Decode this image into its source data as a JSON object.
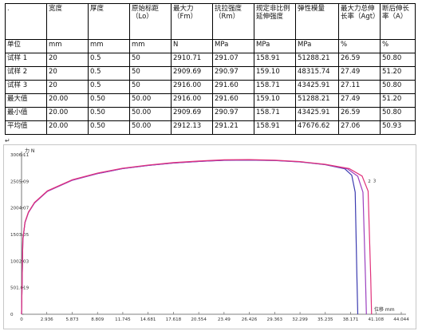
{
  "table": {
    "headers": [
      "宽度",
      "厚度",
      "原始标距（Lo）",
      "最大力（Fm）",
      "抗拉强度（Rm）",
      "规定非比例延伸强度",
      "弹性模量",
      "最大力总伸长率（Agt）",
      "断后伸长率（A）"
    ],
    "unit_row_label": "单位",
    "units": [
      "mm",
      "mm",
      "mm",
      "N",
      "MPa",
      "MPa",
      "MPa",
      "%",
      "%"
    ],
    "rows": [
      {
        "label": "试样 1",
        "values": [
          "20",
          "0.5",
          "50",
          "2910.71",
          "291.07",
          "158.91",
          "51288.21",
          "26.59",
          "50.80"
        ]
      },
      {
        "label": "试样 2",
        "values": [
          "20",
          "0.5",
          "50",
          "2909.69",
          "290.97",
          "159.10",
          "48315.74",
          "27.49",
          "51.20"
        ]
      },
      {
        "label": "试样 3",
        "values": [
          "20",
          "0.5",
          "50",
          "2916.00",
          "291.60",
          "158.71",
          "43425.91",
          "27.11",
          "50.80"
        ]
      },
      {
        "label": "最大值",
        "values": [
          "20.00",
          "0.50",
          "50.00",
          "2916.00",
          "291.60",
          "159.10",
          "51288.21",
          "27.49",
          "51.20"
        ]
      },
      {
        "label": "最小值",
        "values": [
          "20.00",
          "0.50",
          "50.00",
          "2909.69",
          "290.97",
          "158.71",
          "43425.91",
          "26.59",
          "50.80"
        ]
      },
      {
        "label": "平均值",
        "values": [
          "20.00",
          "0.50",
          "50.00",
          "2912.13",
          "291.21",
          "158.91",
          "47676.62",
          "27.06",
          "50.93"
        ]
      }
    ]
  },
  "chart_data": {
    "type": "line",
    "ylabel": "力 N",
    "xlabel": "位移 mm",
    "x_ticks": [
      "0",
      "2.936",
      "5.873",
      "8.809",
      "11.745",
      "14.681",
      "17.618",
      "20.554",
      "23.49",
      "26.426",
      "29.363",
      "32.299",
      "35.235",
      "38.171",
      "41.108",
      "44.044"
    ],
    "y_ticks": [
      "0",
      "501.019",
      "1002.03",
      "1503.05",
      "2004.07",
      "2505.09",
      "3006.11"
    ],
    "xlim": [
      0,
      44.044
    ],
    "ylim": [
      0,
      3006.11
    ],
    "grid": false,
    "series": [
      {
        "color": "#3b3bb0",
        "x": [
          0,
          0.15,
          0.4,
          0.8,
          1.5,
          3,
          5.9,
          8.8,
          11.7,
          14.7,
          17.6,
          20.6,
          23.5,
          26.4,
          29.4,
          32.3,
          35.2,
          37.5,
          38.3,
          38.7,
          38.9,
          39.0
        ],
        "y": [
          0,
          1400,
          1730,
          1920,
          2100,
          2320,
          2530,
          2650,
          2745,
          2805,
          2850,
          2880,
          2900,
          2905,
          2896,
          2870,
          2820,
          2740,
          2620,
          2300,
          700,
          0
        ]
      },
      {
        "label": "2",
        "color": "#9b3fbf",
        "x": [
          0,
          0.15,
          0.4,
          0.8,
          1.5,
          3,
          5.9,
          8.8,
          11.7,
          14.7,
          17.6,
          20.6,
          23.5,
          26.4,
          29.4,
          32.3,
          35.2,
          37.8,
          39.0,
          39.6,
          39.9,
          40.0
        ],
        "y": [
          0,
          1400,
          1725,
          1915,
          2095,
          2315,
          2525,
          2650,
          2745,
          2805,
          2850,
          2880,
          2902,
          2908,
          2898,
          2872,
          2822,
          2740,
          2600,
          2300,
          650,
          0
        ]
      },
      {
        "label": "3",
        "color": "#e0307a",
        "x": [
          0,
          0.15,
          0.4,
          0.8,
          1.5,
          3,
          5.9,
          8.8,
          11.7,
          14.7,
          17.6,
          20.6,
          23.5,
          26.4,
          29.4,
          32.3,
          35.2,
          38.0,
          39.5,
          40.2,
          40.5,
          40.6
        ],
        "y": [
          0,
          1410,
          1735,
          1925,
          2105,
          2325,
          2535,
          2660,
          2752,
          2812,
          2858,
          2888,
          2910,
          2914,
          2903,
          2876,
          2826,
          2745,
          2605,
          2320,
          700,
          0
        ]
      }
    ]
  }
}
